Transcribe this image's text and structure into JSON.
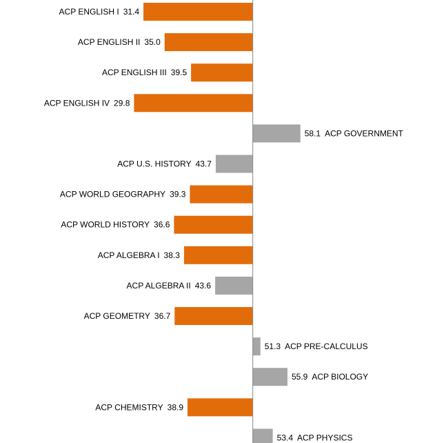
{
  "chart_data": {
    "type": "diverging-bar",
    "categories": [
      "ACP ENGLISH I",
      "ACP ENGLISH II",
      "ACP ENGLISH III",
      "ACP ENGLISH IV",
      "ACP GOVERNMENT",
      "ACP U.S. HISTORY",
      "ACP WORLD GEOGRAPHY",
      "ACP WORLD HISTORY",
      "ACP ALGEBRA I",
      "ACP ALGEBRA II",
      "ACP GEOMETRY",
      "ACP PRE-CALCULUS",
      "ACP BIOLOGY",
      "ACP CHEMISTRY",
      "ACP PHYSICS"
    ],
    "values": [
      31.4,
      35.0,
      39.5,
      29.8,
      58.1,
      43.7,
      39.3,
      36.6,
      38.3,
      43.6,
      36.7,
      51.3,
      55.9,
      38.9,
      53.4
    ],
    "value_labels": [
      "31.4",
      "35.0",
      "39.5",
      "29.8",
      "58.1",
      "43.7",
      "39.3",
      "36.6",
      "38.3",
      "43.6",
      "36.7",
      "51.3",
      "55.9",
      "38.9",
      "53.4"
    ],
    "colors": [
      "#e36c0a",
      "#e36c0a",
      "#e36c0a",
      "#e36c0a",
      "#a6a6a6",
      "#a6a6a6",
      "#e36c0a",
      "#e36c0a",
      "#e36c0a",
      "#a6a6a6",
      "#e36c0a",
      "#a6a6a6",
      "#a6a6a6",
      "#e36c0a",
      "#a6a6a6"
    ],
    "baseline": 50,
    "xlim": [
      7,
      81
    ]
  }
}
